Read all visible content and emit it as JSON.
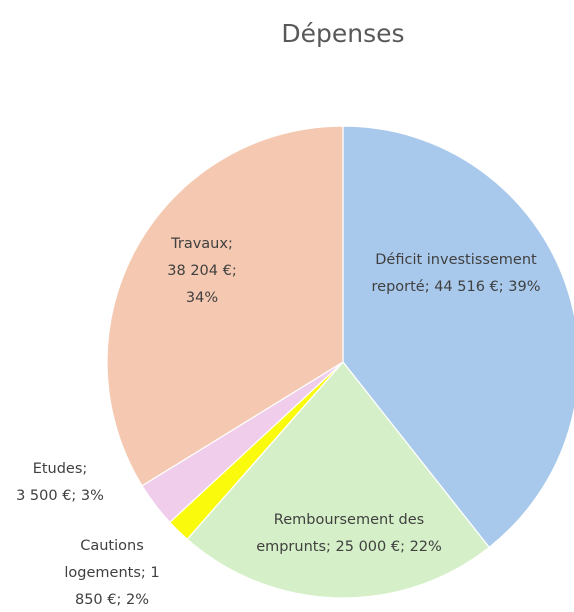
{
  "chart_data": {
    "type": "pie",
    "title": "Dépenses",
    "slices": [
      {
        "name": "Déficit investissement reporté",
        "value": 44516,
        "percent": 39,
        "color": "#a9c9ec",
        "label_lines": [
          "Déficit investissement",
          "reporté; 44 516 €; 39%"
        ]
      },
      {
        "name": "Remboursement des emprunts",
        "value": 25000,
        "percent": 22,
        "color": "#d5f0c8",
        "label_lines": [
          "Remboursement des",
          "emprunts; 25 000 €; 22%"
        ]
      },
      {
        "name": "Cautions logements",
        "value": 1850,
        "percent": 2,
        "color": "#fafa0c",
        "label_lines": [
          "Cautions",
          "logements; 1",
          "850 €; 2%"
        ]
      },
      {
        "name": "Etudes",
        "value": 3500,
        "percent": 3,
        "color": "#f0cdeb",
        "label_lines": [
          "Etudes;",
          "3 500 €; 3%"
        ]
      },
      {
        "name": "Travaux",
        "value": 38204,
        "percent": 34,
        "color": "#f5c9b1",
        "label_lines": [
          "Travaux;",
          "38 204 €;",
          "34%"
        ]
      }
    ]
  }
}
